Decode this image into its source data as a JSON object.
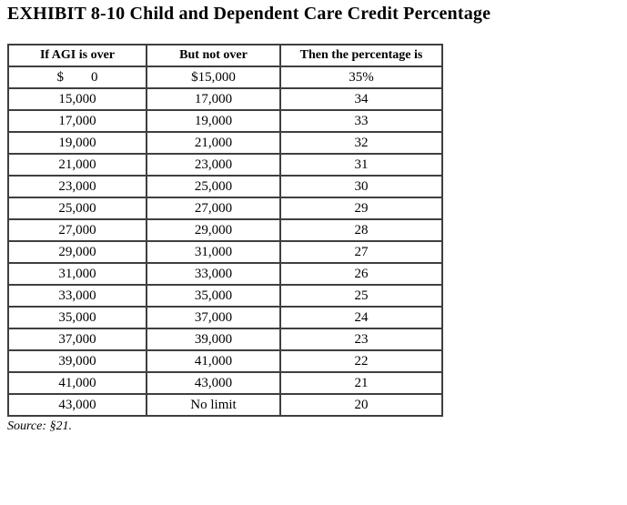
{
  "page": {
    "title": "EXHIBIT 8-10 Child and Dependent Care Credit Percentage",
    "source": "Source: §21."
  },
  "table": {
    "headers": [
      "If AGI is over",
      "But not over",
      "Then the percentage is"
    ],
    "rows": [
      [
        "$        0",
        "$15,000",
        "35%"
      ],
      [
        "15,000",
        "17,000",
        "34"
      ],
      [
        "17,000",
        "19,000",
        "33"
      ],
      [
        "19,000",
        "21,000",
        "32"
      ],
      [
        "21,000",
        "23,000",
        "31"
      ],
      [
        "23,000",
        "25,000",
        "30"
      ],
      [
        "25,000",
        "27,000",
        "29"
      ],
      [
        "27,000",
        "29,000",
        "28"
      ],
      [
        "29,000",
        "31,000",
        "27"
      ],
      [
        "31,000",
        "33,000",
        "26"
      ],
      [
        "33,000",
        "35,000",
        "25"
      ],
      [
        "35,000",
        "37,000",
        "24"
      ],
      [
        "37,000",
        "39,000",
        "23"
      ],
      [
        "39,000",
        "41,000",
        "22"
      ],
      [
        "41,000",
        "43,000",
        "21"
      ],
      [
        "43,000",
        "No limit",
        "20"
      ]
    ]
  }
}
